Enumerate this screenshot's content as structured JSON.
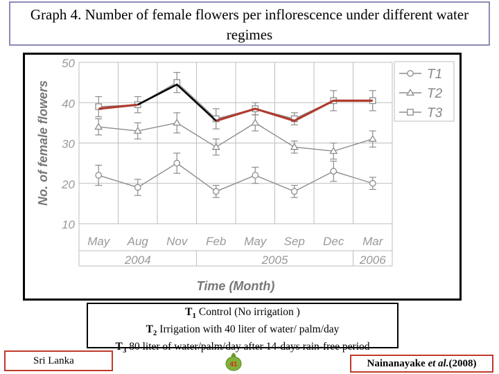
{
  "slide": {
    "title": "Graph 4. Number of female flowers per inflorescence under different water regimes",
    "footer_left": "Sri Lanka",
    "page_number": "41",
    "citation_author": "Nainanayake ",
    "citation_etal": "et al.",
    "citation_year": "(2008)"
  },
  "legend_notes": [
    {
      "code": "T",
      "sub": "1",
      "text": " Control (No irrigation )"
    },
    {
      "code": "T",
      "sub": "2",
      "text": "  Irrigation with 40 liter of water/ palm/day"
    },
    {
      "code": "T",
      "sub": "3",
      "text": "   80 liter of water/palm/day after 14-days rain-free period"
    }
  ],
  "colors": {
    "frame_border": "#000000",
    "title_border": "#8a8ab8",
    "footer_border": "#c0392b",
    "series_gray": "#8c8c8c",
    "highlight_red": "#b03a2e",
    "highlight_black": "#000000",
    "badge_green": "#7fb23a",
    "badge_text": "#d4281c"
  },
  "chart_data": {
    "type": "line",
    "categories": [
      "May",
      "Aug",
      "Nov",
      "Feb",
      "May",
      "Sep",
      "Dec",
      "Mar"
    ],
    "year_labels": [
      "2004",
      "2005",
      "2006"
    ],
    "xlabel": "Time (Month)",
    "ylabel": "No. of female flowers",
    "ylim": [
      10,
      50
    ],
    "yticks": [
      10,
      20,
      30,
      40,
      50
    ],
    "grid": true,
    "legend_position": "top-right",
    "series": [
      {
        "name": "T1",
        "marker": "circle",
        "values": [
          22,
          19,
          25,
          18,
          22,
          18,
          23,
          20
        ],
        "errors": [
          2.5,
          2,
          2.5,
          1.5,
          2,
          1.5,
          2.5,
          1.5
        ]
      },
      {
        "name": "T2",
        "marker": "triangle",
        "values": [
          34,
          33,
          35,
          29,
          35,
          29,
          28,
          31
        ],
        "errors": [
          2,
          2,
          2.5,
          2,
          2,
          1.5,
          2,
          2
        ]
      },
      {
        "name": "T3",
        "marker": "square",
        "values": [
          39,
          39.5,
          45,
          36,
          38.5,
          36,
          40.5,
          40.5
        ],
        "errors": [
          2.5,
          2,
          2.5,
          2.5,
          1.5,
          1.5,
          2.5,
          2.5
        ]
      }
    ],
    "overlay_lines": [
      {
        "color": "red",
        "values": [
          38.5,
          39.5,
          null,
          35.5,
          38.5,
          35.5,
          40.5,
          40.5
        ]
      },
      {
        "color": "black",
        "points": [
          [
            1,
            39.5
          ],
          [
            2,
            44.5
          ],
          [
            3,
            35.5
          ]
        ]
      }
    ]
  }
}
